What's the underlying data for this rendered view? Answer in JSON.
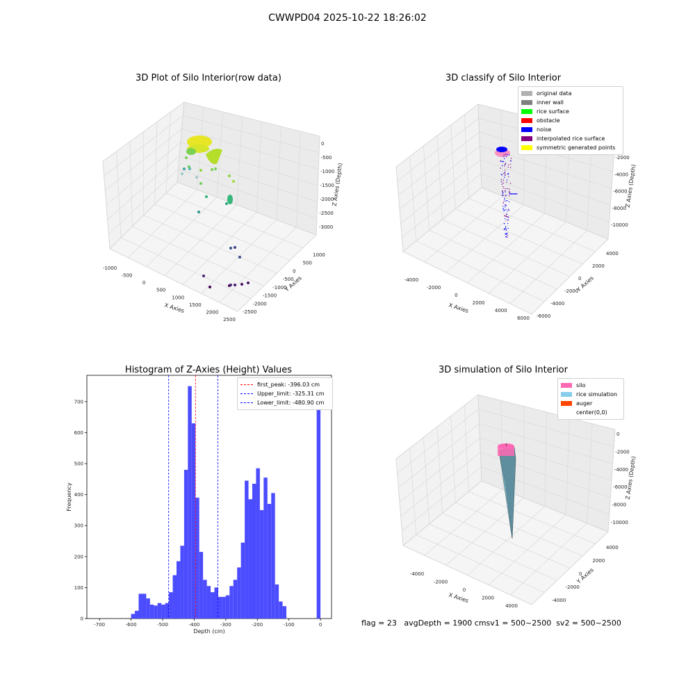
{
  "suptitle": "CWWPD04 2025-10-22 18:26:02",
  "panel_raw": {
    "title": "3D Plot of Silo Interior(row data)",
    "x_ticks": [
      "-1000",
      "-500",
      "0",
      "500",
      "1000",
      "1500",
      "2000",
      "2500"
    ],
    "y_ticks": [
      "1000",
      "500",
      "0",
      "-500",
      "-1000",
      "-1500",
      "-2000",
      "-2500"
    ],
    "z_ticks": [
      "0",
      "-500",
      "-1000",
      "-1500",
      "-2000",
      "-2500",
      "-3000"
    ],
    "xlabel": "X Axies",
    "ylabel": "Y Axies",
    "zlabel": "Z Axies (Depth)"
  },
  "panel_classify": {
    "title": "3D classify of Silo Interior",
    "x_ticks": [
      "-4000",
      "-2000",
      "0",
      "2000",
      "4000",
      "6000"
    ],
    "y_ticks": [
      "4000",
      "2000",
      "0",
      "-2000",
      "-4000",
      "-6000"
    ],
    "z_ticks": [
      "0",
      "-2000",
      "-4000",
      "-6000",
      "-8000",
      "-10000"
    ],
    "xlabel": "X Axies",
    "ylabel": "Y Axies",
    "zlabel": "Z Axies (Depth)",
    "legend": [
      {
        "label": "original data",
        "color": "#b0b0b0"
      },
      {
        "label": "inner wall",
        "color": "#808080"
      },
      {
        "label": "rice surface",
        "color": "#00ff00"
      },
      {
        "label": "obstacle",
        "color": "#ff0000"
      },
      {
        "label": "noise",
        "color": "#0000ff"
      },
      {
        "label": "interpolated rice surface",
        "color": "#800080"
      },
      {
        "label": "symmetric generated points",
        "color": "#ffff00"
      }
    ]
  },
  "panel_sim": {
    "title": "3D simulation of Silo Interior",
    "x_ticks": [
      "-4000",
      "-2000",
      "0",
      "2000",
      "4000"
    ],
    "y_ticks": [
      "4000",
      "2000",
      "0",
      "-2000",
      "-4000"
    ],
    "z_ticks": [
      "0",
      "-2000",
      "-4000",
      "-6000",
      "-8000",
      "-10000"
    ],
    "xlabel": "X Axies",
    "ylabel": "Y Axies",
    "zlabel": "Z Axies (Depth)",
    "legend": [
      {
        "label": "silo",
        "color": "#ff69b4"
      },
      {
        "label": "rice simulation",
        "color": "#87ceeb"
      },
      {
        "label": "auger",
        "color": "#ff4500"
      },
      {
        "label": "center(0,0)",
        "color": "#ffffff"
      }
    ]
  },
  "chart_data": {
    "type": "bar",
    "title": "Histogram of Z-Axies (Height) Values",
    "xlabel": "Depth (cm)",
    "ylabel": "Frequency",
    "xlim": [
      -740,
      35
    ],
    "ylim": [
      0,
      785
    ],
    "x_ticks": [
      -700,
      -600,
      -500,
      -400,
      -300,
      -200,
      -100,
      0
    ],
    "y_ticks": [
      0,
      100,
      200,
      300,
      400,
      500,
      600,
      700
    ],
    "bar_color": "#4c4cff",
    "bin_width": 12,
    "bin_lefts": [
      -600,
      -588,
      -576,
      -564,
      -552,
      -540,
      -528,
      -516,
      -504,
      -492,
      -480,
      -468,
      -456,
      -444,
      -432,
      -420,
      -408,
      -396,
      -384,
      -372,
      -360,
      -348,
      -336,
      -324,
      -312,
      -300,
      -288,
      -276,
      -264,
      -252,
      -240,
      -228,
      -216,
      -204,
      -192,
      -180,
      -168,
      -156,
      -144,
      -132,
      -120,
      -108,
      -96,
      -84,
      -72,
      -60,
      -48,
      -36,
      -24,
      -12
    ],
    "values": [
      15,
      25,
      80,
      80,
      65,
      45,
      42,
      50,
      45,
      50,
      85,
      140,
      185,
      235,
      480,
      750,
      630,
      390,
      215,
      125,
      105,
      85,
      100,
      70,
      70,
      75,
      105,
      125,
      165,
      245,
      445,
      385,
      435,
      485,
      350,
      455,
      370,
      405,
      110,
      55,
      40,
      0,
      0,
      0,
      0,
      0,
      0,
      0,
      0,
      0
    ],
    "extra_bar": {
      "left": -12,
      "value": 750
    },
    "vlines": [
      {
        "x": -396.03,
        "color": "#ff0000",
        "label": "first_peak: -396.03 cm"
      },
      {
        "x": -325.31,
        "color": "#0000ff",
        "label": "Upper_limit: -325.31 cm"
      },
      {
        "x": -480.9,
        "color": "#0000ff",
        "label": "Lower_limit: -480.90 cm"
      }
    ],
    "legend_position": "top-right"
  },
  "footer": {
    "text": "flag = 23   avgDepth = 1900 cmsv1 = 500~2500  sv2 = 500~2500"
  }
}
